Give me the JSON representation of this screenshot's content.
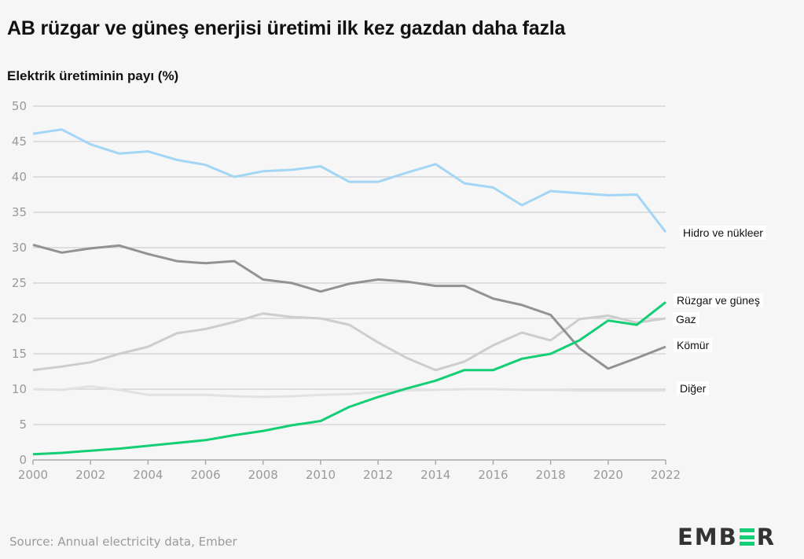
{
  "header": {
    "title": "AB rüzgar ve güneş enerjisi üretimi ilk kez gazdan daha fazla",
    "subtitle": "Elektrik üretiminin payı (%)"
  },
  "footer": {
    "source": "Source: Annual electricity data, Ember",
    "logo_left": "EMB",
    "logo_right": "R"
  },
  "chart_data": {
    "type": "line",
    "title": "AB rüzgar ve güneş enerjisi üretimi ilk kez gazdan daha fazla",
    "ylabel": "Elektrik üretiminin payı (%)",
    "xlabel": "",
    "ylim": [
      0,
      50
    ],
    "xlim": [
      2000,
      2022
    ],
    "yticks": [
      0,
      5,
      10,
      15,
      20,
      25,
      30,
      35,
      40,
      45,
      50
    ],
    "xticks": [
      2000,
      2002,
      2004,
      2006,
      2008,
      2010,
      2012,
      2014,
      2016,
      2018,
      2020,
      2022
    ],
    "grid": true,
    "legend": "direct-labels-right",
    "x": [
      2000,
      2001,
      2002,
      2003,
      2004,
      2005,
      2006,
      2007,
      2008,
      2009,
      2010,
      2011,
      2012,
      2013,
      2014,
      2015,
      2016,
      2017,
      2018,
      2019,
      2020,
      2021,
      2022
    ],
    "series": [
      {
        "name": "Hidro ve nükleer",
        "color": "#a3d6f5",
        "values": [
          46.1,
          46.7,
          44.6,
          43.3,
          43.6,
          42.4,
          41.7,
          40.0,
          40.8,
          41.0,
          41.5,
          39.3,
          39.3,
          40.6,
          41.8,
          39.1,
          38.5,
          36.0,
          38.0,
          37.7,
          37.4,
          37.5,
          32.2
        ]
      },
      {
        "name": "Rüzgar ve güneş",
        "color": "#13ce74",
        "values": [
          0.8,
          1.0,
          1.3,
          1.6,
          2.0,
          2.4,
          2.8,
          3.5,
          4.1,
          4.9,
          5.5,
          7.5,
          8.9,
          10.1,
          11.2,
          12.7,
          12.7,
          14.3,
          15.0,
          16.9,
          19.7,
          19.1,
          22.3
        ]
      },
      {
        "name": "Gaz",
        "color": "#cdcdcd",
        "values": [
          12.7,
          13.2,
          13.8,
          15.0,
          16.0,
          17.9,
          18.5,
          19.5,
          20.7,
          20.2,
          20.0,
          19.1,
          16.6,
          14.4,
          12.7,
          13.9,
          16.2,
          18.0,
          16.9,
          19.9,
          20.4,
          19.4,
          20.0
        ]
      },
      {
        "name": "Kömür",
        "color": "#929292",
        "values": [
          30.4,
          29.3,
          29.9,
          30.3,
          29.1,
          28.1,
          27.8,
          28.1,
          25.5,
          25.0,
          23.8,
          24.9,
          25.5,
          25.2,
          24.6,
          24.6,
          22.8,
          21.9,
          20.5,
          15.8,
          12.9,
          14.4,
          16.0
        ]
      },
      {
        "name": "Diğer",
        "color": "#e2e2e2",
        "values": [
          10.0,
          9.9,
          10.4,
          9.9,
          9.2,
          9.2,
          9.2,
          9.0,
          8.9,
          9.0,
          9.2,
          9.3,
          9.6,
          9.8,
          9.9,
          10.0,
          10.0,
          9.9,
          9.9,
          9.8,
          9.8,
          9.8,
          9.8
        ]
      }
    ]
  }
}
